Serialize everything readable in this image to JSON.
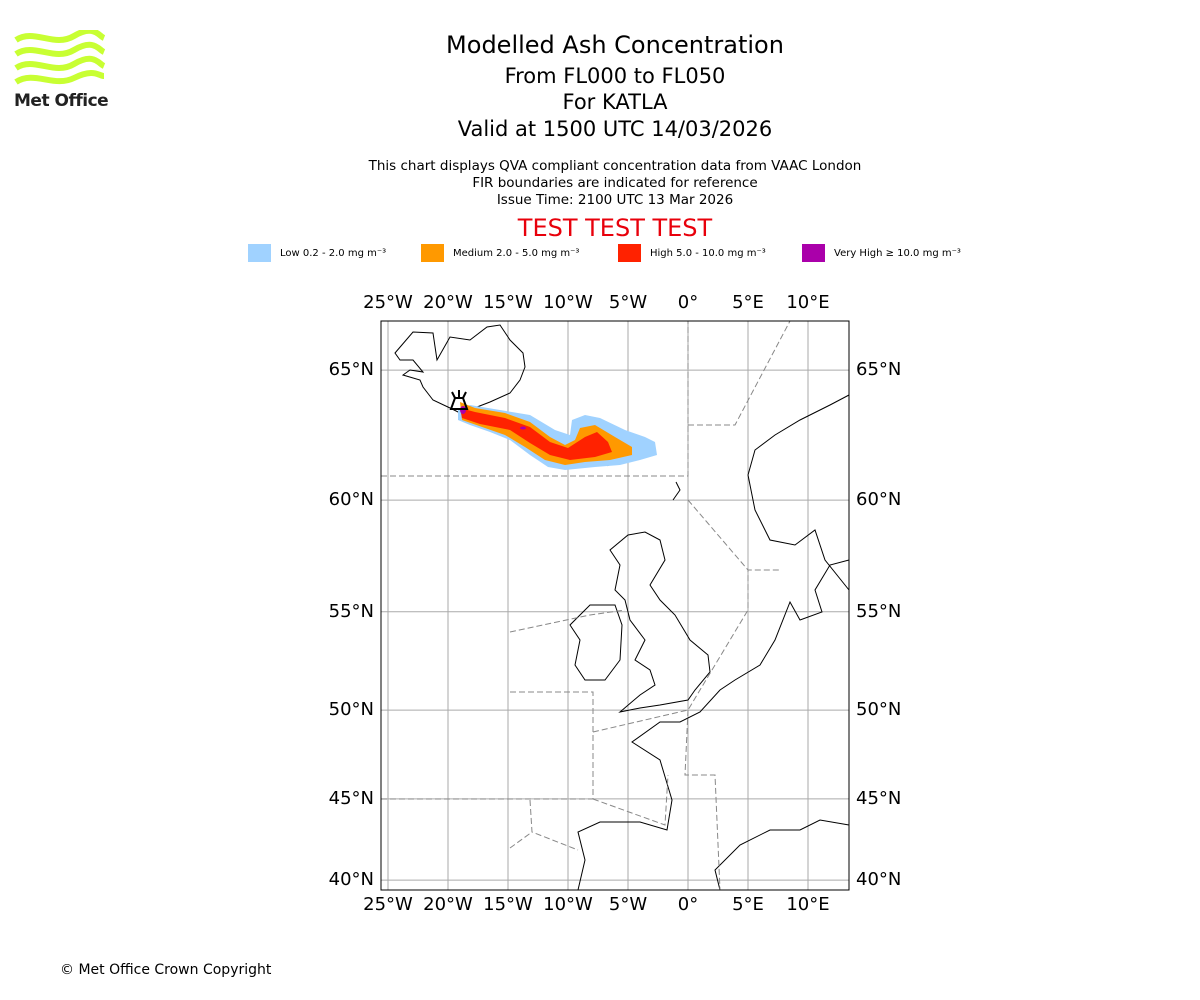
{
  "logo": {
    "text": "Met Office",
    "color": "#c8ff33"
  },
  "title": {
    "main": "Modelled Ash Concentration",
    "levels": "From FL000 to FL050",
    "volcano": "For KATLA",
    "valid": "Valid at 1500 UTC 14/03/2026"
  },
  "notes": [
    "This chart displays QVA compliant concentration data from VAAC London",
    "FIR boundaries are indicated for reference",
    "Issue Time: 2100 UTC 13 Mar 2026"
  ],
  "test_banner": "TEST TEST TEST",
  "legend": [
    {
      "label": "Low 0.2 - 2.0 mg m⁻³",
      "color": "#a0d2ff"
    },
    {
      "label": "Medium 2.0 - 5.0 mg m⁻³",
      "color": "#ff9900"
    },
    {
      "label": "High 5.0 - 10.0 mg m⁻³",
      "color": "#ff2200"
    },
    {
      "label": "Very High ≥ 10.0 mg m⁻³",
      "color": "#aa00aa"
    }
  ],
  "map": {
    "lon_ticks": [
      "25°W",
      "20°W",
      "15°W",
      "10°W",
      "5°W",
      "0°",
      "5°E",
      "10°E"
    ],
    "lon_values": [
      -25,
      -20,
      -15,
      -10,
      -5,
      0,
      5,
      10
    ],
    "lat_ticks": [
      "65°N",
      "60°N",
      "55°N",
      "50°N",
      "45°N",
      "40°N"
    ],
    "lat_values": [
      65,
      60,
      55,
      50,
      45,
      40
    ],
    "lon_range": [
      -25.6,
      13.4
    ],
    "lat_range": [
      39.6,
      67.3
    ]
  },
  "copyright": "© Met Office Crown Copyright"
}
